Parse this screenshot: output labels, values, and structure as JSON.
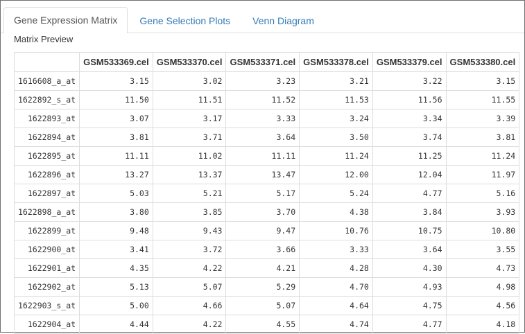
{
  "tabs": [
    {
      "label": "Gene Expression Matrix",
      "active": true
    },
    {
      "label": "Gene Selection Plots",
      "active": false
    },
    {
      "label": "Venn Diagram",
      "active": false
    }
  ],
  "section_label": "Matrix Preview",
  "table": {
    "columns": [
      "",
      "GSM533369.cel",
      "GSM533370.cel",
      "GSM533371.cel",
      "GSM533378.cel",
      "GSM533379.cel",
      "GSM533380.cel"
    ],
    "rows": [
      [
        "1616608_a_at",
        "3.15",
        "3.02",
        "3.23",
        "3.21",
        "3.22",
        "3.15"
      ],
      [
        "1622892_s_at",
        "11.50",
        "11.51",
        "11.52",
        "11.53",
        "11.56",
        "11.55"
      ],
      [
        "1622893_at",
        "3.07",
        "3.17",
        "3.33",
        "3.24",
        "3.34",
        "3.39"
      ],
      [
        "1622894_at",
        "3.81",
        "3.71",
        "3.64",
        "3.50",
        "3.74",
        "3.81"
      ],
      [
        "1622895_at",
        "11.11",
        "11.02",
        "11.11",
        "11.24",
        "11.25",
        "11.24"
      ],
      [
        "1622896_at",
        "13.27",
        "13.37",
        "13.47",
        "12.00",
        "12.04",
        "11.97"
      ],
      [
        "1622897_at",
        "5.03",
        "5.21",
        "5.17",
        "5.24",
        "4.77",
        "5.16"
      ],
      [
        "1622898_a_at",
        "3.80",
        "3.85",
        "3.70",
        "4.38",
        "3.84",
        "3.93"
      ],
      [
        "1622899_at",
        "9.48",
        "9.43",
        "9.47",
        "10.76",
        "10.75",
        "10.80"
      ],
      [
        "1622900_at",
        "3.41",
        "3.72",
        "3.66",
        "3.33",
        "3.64",
        "3.55"
      ],
      [
        "1622901_at",
        "4.35",
        "4.22",
        "4.21",
        "4.28",
        "4.30",
        "4.73"
      ],
      [
        "1622902_at",
        "5.13",
        "5.07",
        "5.29",
        "4.70",
        "4.93",
        "4.98"
      ],
      [
        "1622903_s_at",
        "5.00",
        "4.66",
        "5.07",
        "4.64",
        "4.75",
        "4.56"
      ],
      [
        "1622904_at",
        "4.44",
        "4.22",
        "4.55",
        "4.74",
        "4.77",
        "4.18"
      ]
    ]
  }
}
